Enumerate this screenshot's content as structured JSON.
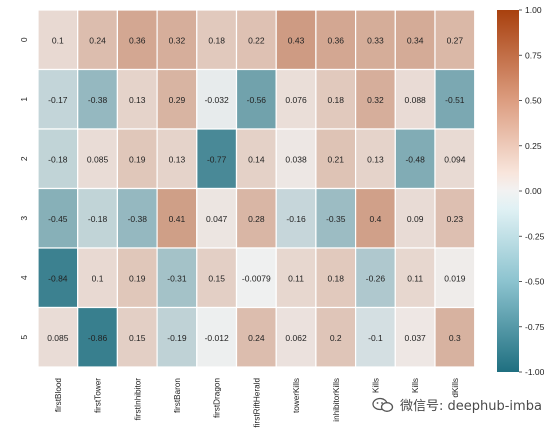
{
  "chart_data": {
    "type": "heatmap",
    "rows": [
      "0",
      "1",
      "2",
      "3",
      "4",
      "5"
    ],
    "columns": [
      "firstBlood",
      "firstTower",
      "firstInhibitor",
      "firstBaron",
      "firstDragon",
      "firstRiftHerald",
      "towerKills",
      "inhibitorKills",
      "Kills",
      "Kills",
      "dKills"
    ],
    "values": [
      [
        0.1,
        0.24,
        0.36,
        0.32,
        0.18,
        0.22,
        0.43,
        0.36,
        0.33,
        0.34,
        0.27
      ],
      [
        -0.17,
        -0.38,
        0.13,
        0.29,
        -0.032,
        -0.56,
        0.076,
        0.18,
        0.32,
        0.088,
        -0.51
      ],
      [
        -0.18,
        0.085,
        0.19,
        0.13,
        -0.77,
        0.14,
        0.038,
        0.21,
        0.13,
        -0.48,
        0.094
      ],
      [
        -0.45,
        -0.18,
        -0.38,
        0.41,
        0.047,
        0.28,
        -0.16,
        -0.35,
        0.4,
        0.09,
        0.23
      ],
      [
        -0.84,
        0.1,
        0.19,
        -0.31,
        0.15,
        -0.0079,
        0.11,
        0.18,
        -0.26,
        0.11,
        0.019
      ],
      [
        0.085,
        -0.86,
        0.15,
        -0.19,
        -0.012,
        0.24,
        0.062,
        0.2,
        -0.1,
        0.037,
        0.3
      ]
    ],
    "labels": [
      [
        "0.1",
        "0.24",
        "0.36",
        "0.32",
        "0.18",
        "0.22",
        "0.43",
        "0.36",
        "0.33",
        "0.34",
        "0.27"
      ],
      [
        "-0.17",
        "-0.38",
        "0.13",
        "0.29",
        "-0.032",
        "-0.56",
        "0.076",
        "0.18",
        "0.32",
        "0.088",
        "-0.51"
      ],
      [
        "-0.18",
        "0.085",
        "0.19",
        "0.13",
        "-0.77",
        "0.14",
        "0.038",
        "0.21",
        "0.13",
        "-0.48",
        "0.094"
      ],
      [
        "-0.45",
        "-0.18",
        "-0.38",
        "0.41",
        "0.047",
        "0.28",
        "-0.16",
        "-0.35",
        "0.4",
        "0.09",
        "0.23"
      ],
      [
        "-0.84",
        "0.1",
        "0.19",
        "-0.31",
        "0.15",
        "-0.0079",
        "0.11",
        "0.18",
        "-0.26",
        "0.11",
        "0.019"
      ],
      [
        "0.085",
        "-0.86",
        "0.15",
        "-0.19",
        "-0.012",
        "0.24",
        "0.062",
        "0.2",
        "-0.1",
        "0.037",
        "0.3"
      ]
    ],
    "vmin": -1.0,
    "vmax": 1.0,
    "colorbar_ticks": [
      1.0,
      0.75,
      0.5,
      0.25,
      0.0,
      -0.25,
      -0.5,
      -0.75,
      -1.0
    ],
    "colorbar_tick_labels": [
      "1.00",
      "0.75",
      "0.50",
      "0.25",
      "0.00",
      "-0.25",
      "-0.50",
      "-0.75",
      "-1.00"
    ],
    "colormap": {
      "negative": "#1f6f80",
      "center": "#f2f2f2",
      "positive": "#a8400e"
    },
    "title": "",
    "xlabel": "",
    "ylabel": ""
  },
  "watermark": {
    "text": "微信号: deephub-imba",
    "icon": "wechat-icon"
  }
}
